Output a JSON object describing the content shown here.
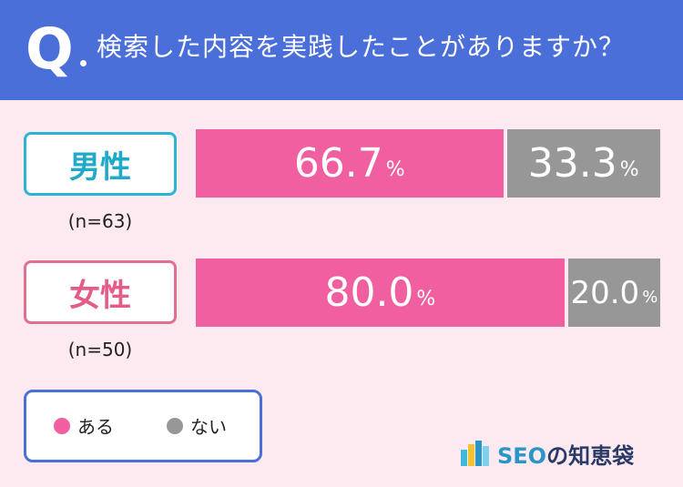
{
  "header": {
    "q_label": "Q",
    "question": "検索した内容を実践したことがありますか？",
    "bg_color": "#4a6fd8"
  },
  "chart_data": {
    "type": "bar",
    "stacked": true,
    "orientation": "horizontal",
    "categories": [
      "男性",
      "女性"
    ],
    "sample_sizes": [
      "(n=63)",
      "(n=50)"
    ],
    "series": [
      {
        "name": "ある",
        "color": "#f060a0",
        "values": [
          66.7,
          80.0
        ],
        "labels": [
          "66.7",
          "80.0"
        ]
      },
      {
        "name": "ない",
        "color": "#979797",
        "values": [
          33.3,
          20.0
        ],
        "labels": [
          "33.3",
          "20.0"
        ]
      }
    ],
    "unit": "%",
    "xlim": [
      0,
      100
    ]
  },
  "legend": {
    "items": [
      {
        "label": "ある",
        "color": "#f060a0"
      },
      {
        "label": "ない",
        "color": "#979797"
      }
    ]
  },
  "logo": {
    "brand": "SEO",
    "suffix": "の知恵袋"
  }
}
